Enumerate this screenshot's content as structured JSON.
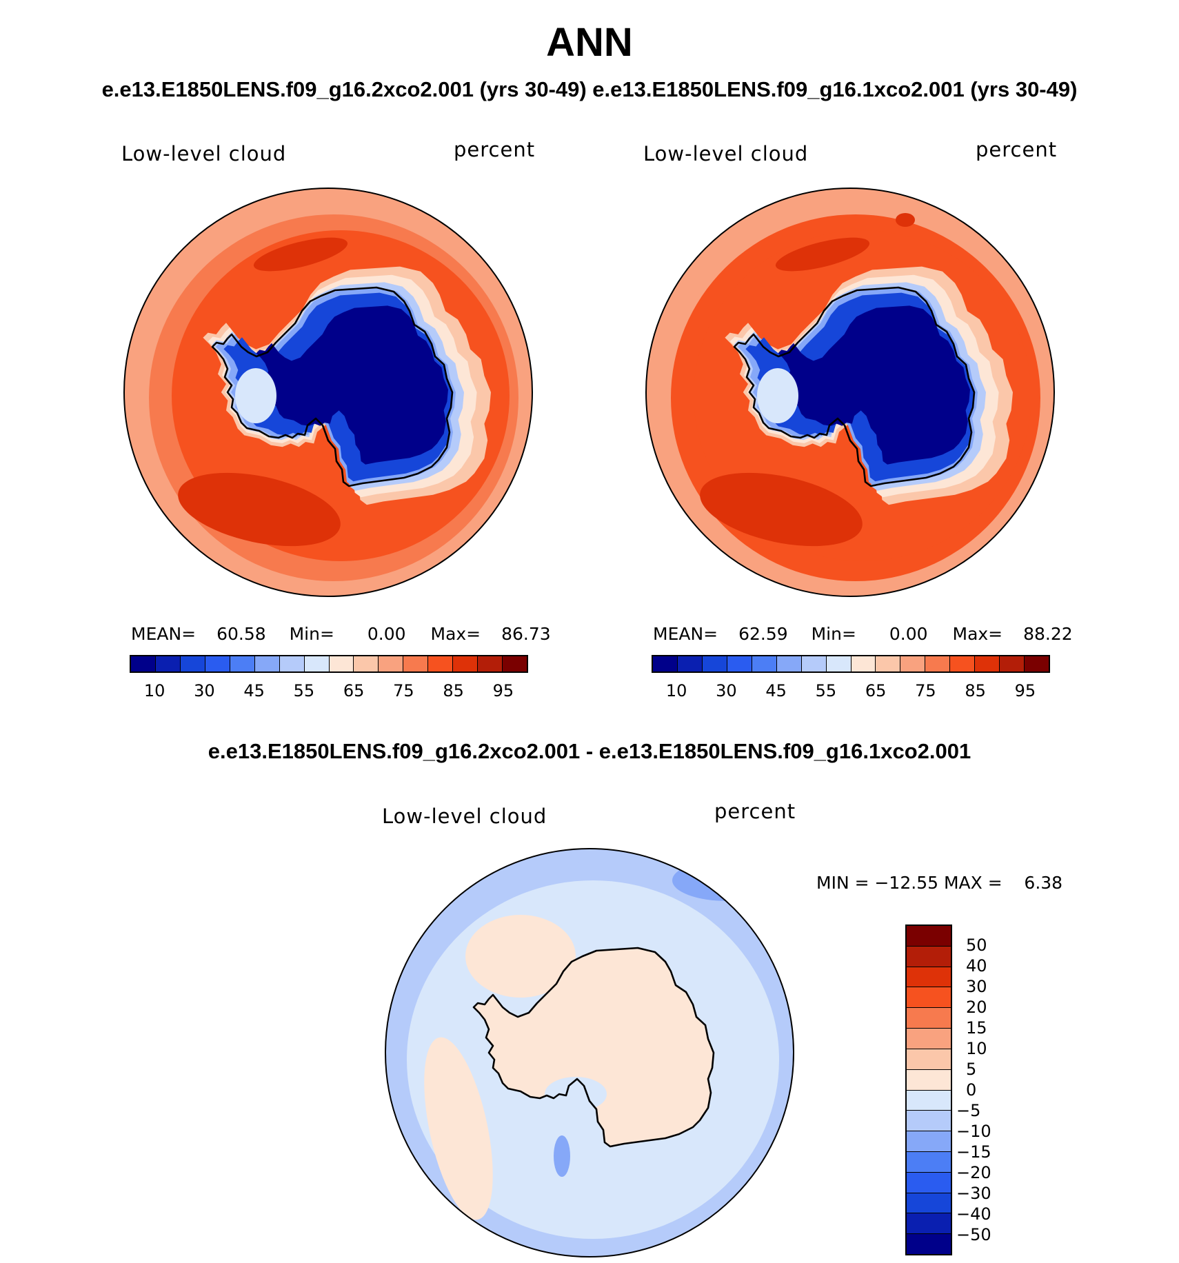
{
  "title": "ANN",
  "subtitle_top": "e.e13.E1850LENS.f09_g16.2xco2.001 (yrs 30-49) e.e13.E1850LENS.f09_g16.1xco2.001 (yrs 30-49)",
  "subtitle_diff": "e.e13.E1850LENS.f09_g16.2xco2.001 - e.e13.E1850LENS.f09_g16.1xco2.001",
  "panels": [
    {
      "name": "2xco2",
      "variable": "Low-level cloud",
      "units": "percent",
      "mean_label": "MEAN=",
      "mean": "60.58",
      "min_label": "Min=",
      "min": "0.00",
      "max_label": "Max=",
      "max": "86.73"
    },
    {
      "name": "1xco2",
      "variable": "Low-level cloud",
      "units": "percent",
      "mean_label": "MEAN=",
      "mean": "62.59",
      "min_label": "Min=",
      "min": "0.00",
      "max_label": "Max=",
      "max": "88.22"
    }
  ],
  "diff_panel": {
    "variable": "Low-level cloud",
    "units": "percent",
    "minmax_text": "MIN = −12.55 MAX =    6.38"
  },
  "colorbar_main": {
    "colors": [
      "#00008a",
      "#0a1fb0",
      "#1646d9",
      "#2a5cf0",
      "#4c7ef5",
      "#86a8f8",
      "#b5cbfa",
      "#d8e7fb",
      "#fde6d6",
      "#fbc7aa",
      "#f9a27f",
      "#f77a4e",
      "#f6521f",
      "#de3208",
      "#b31e08",
      "#7a0000"
    ],
    "tick_labels": [
      "10",
      "30",
      "45",
      "55",
      "65",
      "75",
      "85",
      "95"
    ]
  },
  "colorbar_diff": {
    "colors_top_to_bottom": [
      "#7a0000",
      "#b31e08",
      "#de3208",
      "#f6521f",
      "#f77a4e",
      "#f9a27f",
      "#fbc7aa",
      "#fde6d6",
      "#d8e7fb",
      "#b5cbfa",
      "#86a8f8",
      "#4c7ef5",
      "#2a5cf0",
      "#1646d9",
      "#0a1fb0",
      "#00008a"
    ],
    "tick_labels": [
      "50",
      "40",
      "30",
      "20",
      "15",
      "10",
      "5",
      "0",
      "−5",
      "−10",
      "−15",
      "−20",
      "−30",
      "−40",
      "−50"
    ]
  },
  "map_colors": {
    "ocean_outer": "#f9a27f",
    "ocean_main": "#f6521f",
    "ocean_dark": "#de3208",
    "coast_light": "#fde6d6",
    "ice_edge": "#86a8f8",
    "ice_mid": "#1646d9",
    "ice_core": "#00008a",
    "diff_base": "#d8e7fb",
    "diff_pos": "#fde6d6",
    "diff_neg": "#b5cbfa",
    "diff_neg2": "#86a8f8"
  }
}
